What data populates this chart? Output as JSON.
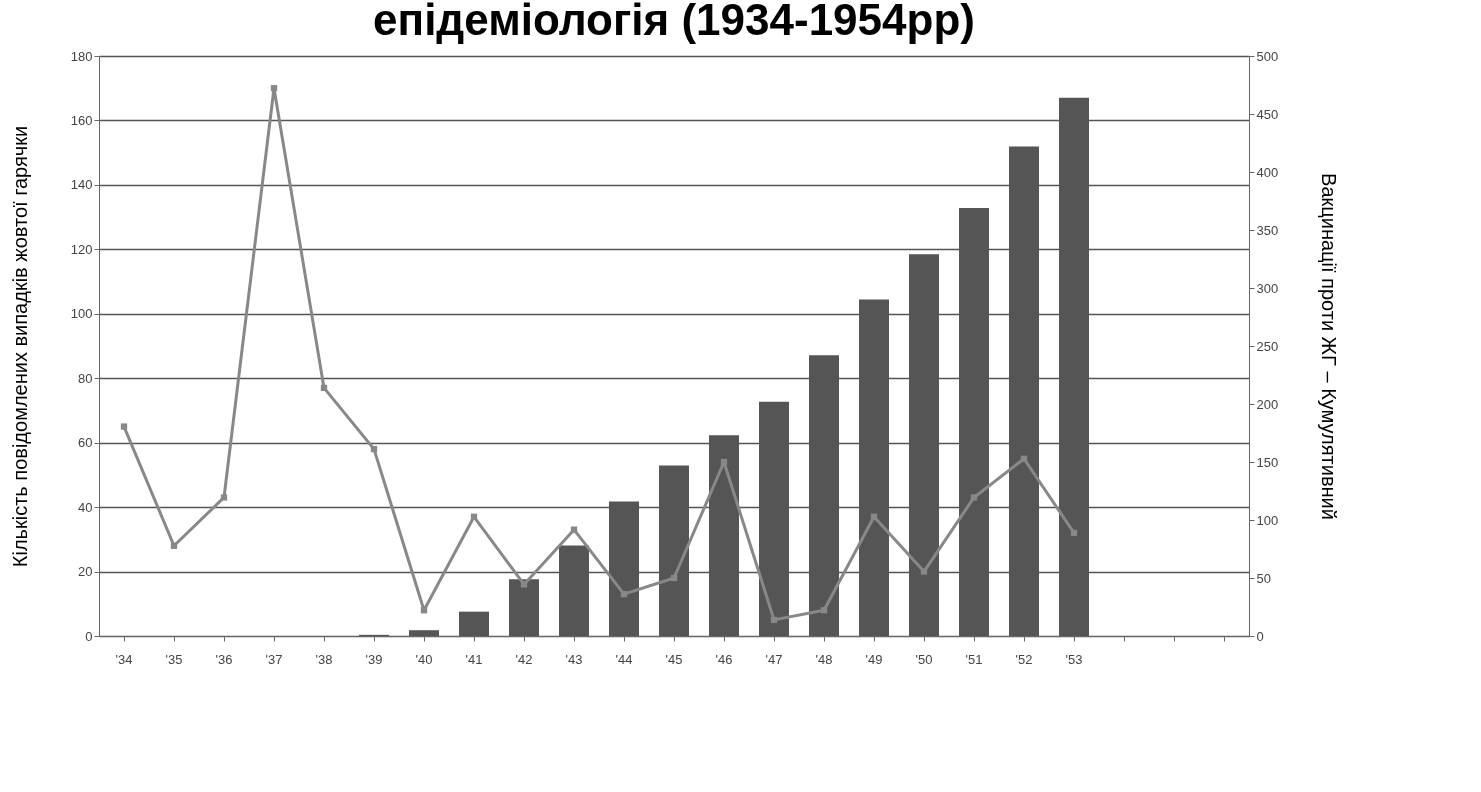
{
  "chart_data": {
    "type": "bar",
    "title": "епідеміологія (1934-1954рр)",
    "ylabel": "Кількість повідомлених випадків жовтої гарячки",
    "y2label": "Вакцинації проти ЖГ – Кумулятивний",
    "categories": [
      "'34",
      "'35",
      "'36",
      "'37",
      "'38",
      "'39",
      "'40",
      "'41",
      "'42",
      "'43",
      "'44",
      "'45",
      "'46",
      "'47",
      "'48",
      "'49",
      "'50",
      "'51",
      "'52",
      "'53",
      null,
      null,
      null
    ],
    "series": [
      {
        "axis": "y2",
        "color": "#555555",
        "values": [
          0,
          0,
          0,
          0,
          0,
          1,
          5,
          21,
          49,
          78,
          116,
          147,
          173,
          202,
          242,
          290,
          329,
          369,
          422,
          464,
          null,
          null,
          null
        ]
      },
      {
        "type": "line",
        "color": "#888888",
        "marker": "square",
        "line_style": "solid",
        "values": [
          65,
          28,
          43,
          170,
          77,
          58,
          8,
          37,
          16,
          33,
          13,
          18,
          54,
          5,
          8,
          37,
          20,
          43,
          55,
          32,
          null,
          null,
          null
        ]
      }
    ],
    "ylim": [
      0,
      180
    ],
    "yticks": [
      0,
      20,
      40,
      60,
      80,
      100,
      120,
      140,
      160,
      180
    ],
    "y2lim": [
      0,
      500
    ],
    "y2ticks": [
      0,
      50,
      100,
      150,
      200,
      250,
      300,
      350,
      400,
      450,
      500
    ],
    "grid": "y"
  }
}
